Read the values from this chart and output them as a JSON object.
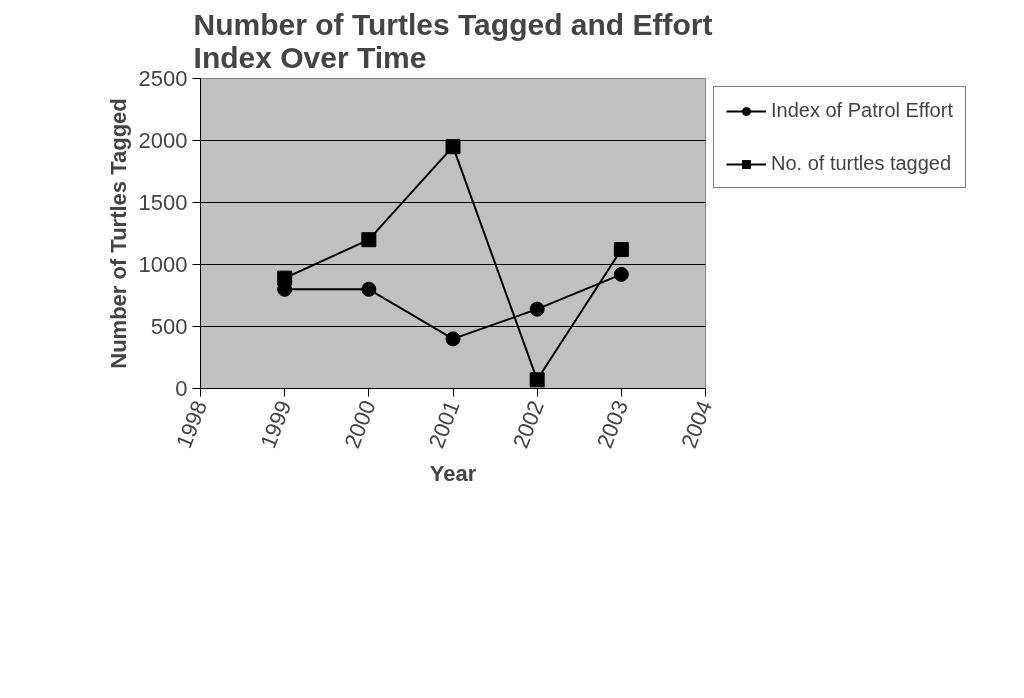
{
  "chart_data": {
    "type": "line",
    "title": "Number of Turtles Tagged and Effort\nIndex Over Time",
    "xlabel": "Year",
    "ylabel": "Number of Turtles Tagged",
    "x": [
      1999,
      2000,
      2001,
      2002,
      2003
    ],
    "series": [
      {
        "name": "Index of Patrol Effort",
        "color": "#000000",
        "marker": "circle",
        "values": [
          800,
          800,
          400,
          640,
          920
        ]
      },
      {
        "name": "No. of turtles tagged",
        "color": "#000000",
        "marker": "square",
        "values": [
          890,
          1200,
          1950,
          70,
          1120
        ]
      }
    ],
    "xlim": [
      1998,
      2004
    ],
    "xticks": [
      1998,
      1999,
      2000,
      2001,
      2002,
      2003,
      2004
    ],
    "ylim": [
      0,
      2500
    ],
    "yticks": [
      0,
      500,
      1000,
      1500,
      2000,
      2500
    ],
    "grid": "y",
    "legend": "right",
    "line_style": "solid"
  }
}
